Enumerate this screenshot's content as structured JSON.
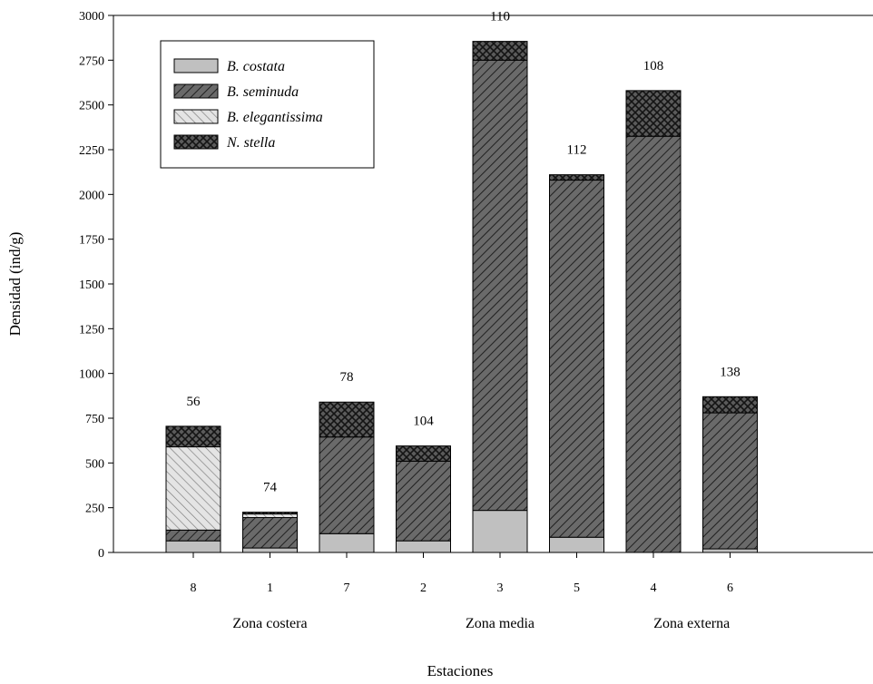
{
  "chart_data": {
    "type": "bar",
    "stacked": true,
    "xlabel": "Estaciones",
    "ylabel": "Densidad (ind/g)",
    "ylim": [
      0,
      3000
    ],
    "yticks": [
      0,
      250,
      500,
      750,
      1000,
      1250,
      1500,
      1750,
      2000,
      2250,
      2500,
      2750,
      3000
    ],
    "categories": [
      "8",
      "1",
      "7",
      "2",
      "3",
      "5",
      "4",
      "6"
    ],
    "groups": [
      {
        "label": "Zona costera",
        "categories": [
          "8",
          "1",
          "7"
        ]
      },
      {
        "label": "Zona media",
        "categories": [
          "2",
          "3",
          "5"
        ]
      },
      {
        "label": "Zona externa",
        "categories": [
          "4",
          "6"
        ]
      }
    ],
    "bar_labels": [
      "56",
      "74",
      "78",
      "104",
      "110",
      "112",
      "108",
      "138"
    ],
    "series": [
      {
        "name": "B. costata",
        "color": "#c0c0c0",
        "pattern": "solid",
        "values": [
          65,
          25,
          105,
          65,
          235,
          85,
          0,
          20
        ]
      },
      {
        "name": "B. seminuda",
        "color": "#606060",
        "pattern": "diagonal",
        "values": [
          60,
          170,
          540,
          445,
          2515,
          1995,
          2325,
          760
        ]
      },
      {
        "name": "B. elegantissima",
        "color": "#dcdcdc",
        "pattern": "diagonal-back",
        "values": [
          465,
          20,
          0,
          0,
          0,
          0,
          0,
          0
        ]
      },
      {
        "name": "N. stella",
        "color": "#505050",
        "pattern": "crosshatch",
        "values": [
          115,
          10,
          195,
          85,
          105,
          30,
          255,
          90
        ]
      }
    ],
    "legend": "top-left",
    "grid": false
  }
}
